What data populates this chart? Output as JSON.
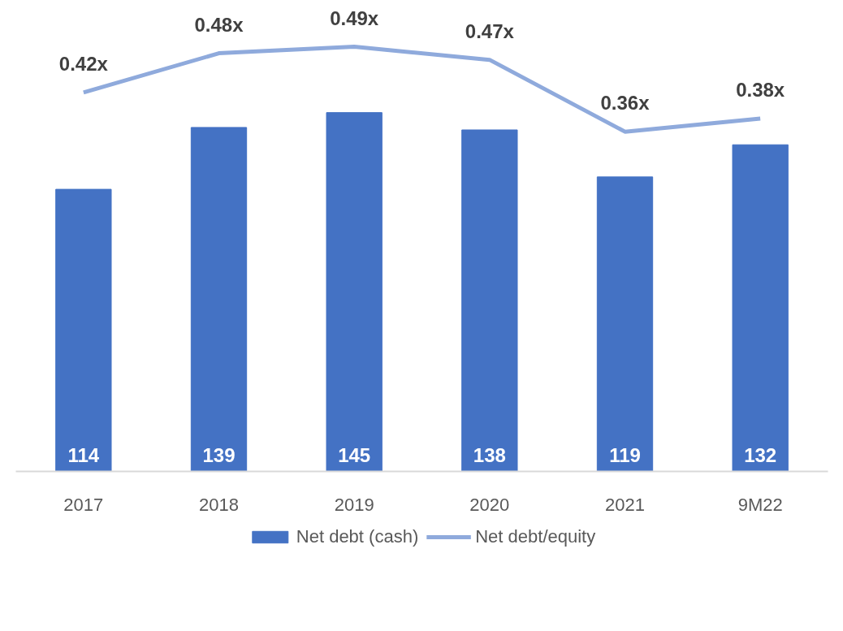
{
  "chart_data": {
    "type": "bar",
    "categories": [
      "2017",
      "2018",
      "2019",
      "2020",
      "2021",
      "9M22"
    ],
    "series": [
      {
        "name": "Net debt (cash)",
        "color": "#4472c4",
        "values": [
          114,
          139,
          145,
          138,
          119,
          132
        ],
        "value_labels": [
          "114",
          "139",
          "145",
          "138",
          "119",
          "132"
        ]
      },
      {
        "name": "Net debt/equity",
        "type": "line",
        "axis": "y2",
        "color": "#8faadc",
        "values": [
          0.42,
          0.48,
          0.49,
          0.47,
          0.36,
          0.38
        ],
        "value_labels": [
          "0.42x",
          "0.48x",
          "0.49x",
          "0.47x",
          "0.36x",
          "0.38x"
        ]
      }
    ],
    "tick_labels": "x",
    "grid": false,
    "legend": "bottom",
    "marker": "none",
    "line_style": "solid"
  }
}
